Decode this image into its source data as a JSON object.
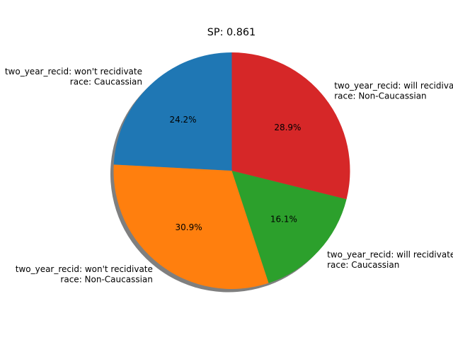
{
  "chart_data": {
    "type": "pie",
    "title": "SP: 0.861",
    "startangle": 90,
    "counterclock": true,
    "shadow": true,
    "slices": [
      {
        "label_lines": [
          "two_year_recid: won't recidivate",
          "race: Caucassian"
        ],
        "value": 24.2,
        "pct_label": "24.2%",
        "color": "#1f77b4"
      },
      {
        "label_lines": [
          "two_year_recid: won't recidivate",
          "race: Non-Caucassian"
        ],
        "value": 30.9,
        "pct_label": "30.9%",
        "color": "#ff7f0e"
      },
      {
        "label_lines": [
          "two_year_recid: will recidivate",
          "race: Caucassian"
        ],
        "value": 16.1,
        "pct_label": "16.1%",
        "color": "#2ca02c"
      },
      {
        "label_lines": [
          "two_year_recid: will recidivate",
          "race: Non-Caucassian"
        ],
        "value": 28.9,
        "pct_label": "28.9%",
        "color": "#d62728"
      }
    ]
  }
}
